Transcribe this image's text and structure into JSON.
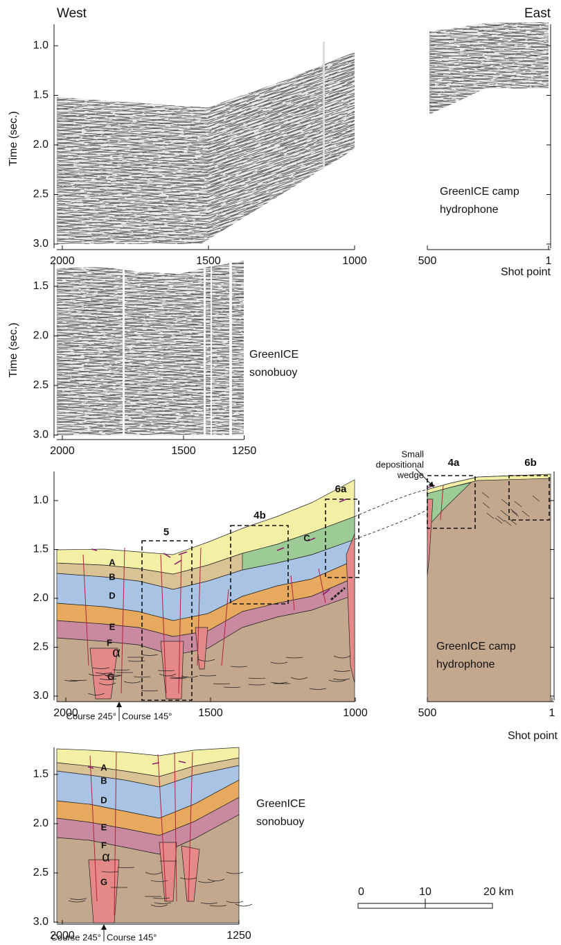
{
  "header": {
    "west": "West",
    "east": "East"
  },
  "panels": [
    {
      "y_label": "Time (sec.)",
      "yticks": [
        {
          "value": 1,
          "label": "1.0"
        },
        1.5,
        {
          "value": 2,
          "label": "2.0"
        },
        2.5,
        {
          "value": 3,
          "label": "3.0"
        }
      ],
      "xticks": [
        2000,
        1500,
        1000,
        500,
        1
      ],
      "site_label": [
        "GreenICE camp",
        "hydrophone"
      ],
      "x_label": "Shot point"
    },
    {
      "y_label": "Time (sec.)",
      "yticks": [
        1.5,
        {
          "value": 2,
          "label": "2.0"
        },
        2.5,
        {
          "value": 3,
          "label": "3.0"
        }
      ],
      "xticks": [
        2000,
        1500,
        1250
      ],
      "site_label": [
        "GreenICE",
        "sonobuoy"
      ]
    },
    {
      "yticks": [
        {
          "value": 1,
          "label": "1.0"
        },
        1.5,
        {
          "value": 2,
          "label": "2.0"
        },
        2.5,
        {
          "value": 3,
          "label": "3.0"
        }
      ],
      "xticks": [
        2000,
        1500,
        1000,
        500,
        1
      ],
      "site_label": [
        "GreenICE camp",
        "hydrophone"
      ],
      "x_label": "Shot point",
      "course_labels": [
        "Course 245°",
        "Course 145°"
      ],
      "unit_labels": [
        "A",
        "B",
        "D",
        "E",
        "F",
        "α",
        "G",
        "C"
      ],
      "boxes": [
        "5",
        "4b",
        "6a",
        "4a",
        "6b"
      ],
      "annotation": [
        "Small",
        "depositional",
        "wedge"
      ]
    },
    {
      "yticks": [
        1.5,
        {
          "value": 2,
          "label": "2.0"
        },
        2.5,
        {
          "value": 3,
          "label": "3.0"
        }
      ],
      "xticks": [
        2000,
        1250
      ],
      "site_label": [
        "GreenICE",
        "sonobuoy"
      ],
      "course_labels": [
        "Course 245°",
        "Course 145°"
      ],
      "unit_labels": [
        "A",
        "B",
        "D",
        "E",
        "F",
        "α",
        "G"
      ]
    }
  ],
  "scale_bar": {
    "labels": [
      "0",
      "10",
      "20 km"
    ]
  }
}
